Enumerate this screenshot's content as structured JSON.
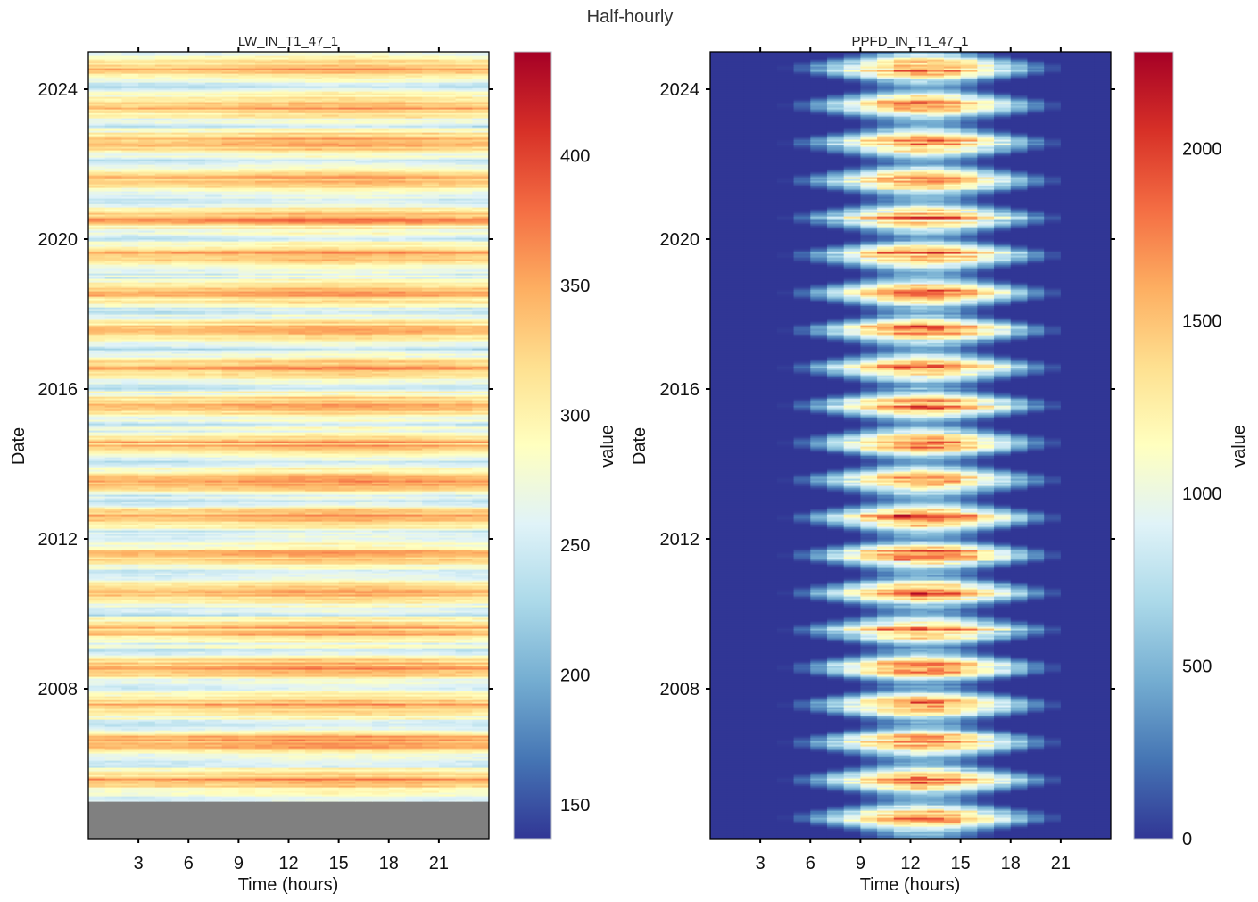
{
  "figure": {
    "title": "Half-hourly"
  },
  "chart_data": [
    {
      "type": "heatmap",
      "title": "LW_IN_T1_47_1",
      "xlabel": "Time (hours)",
      "ylabel": "Date",
      "x_ticks": [
        3,
        6,
        9,
        12,
        15,
        18,
        21
      ],
      "x_range": [
        0,
        24
      ],
      "y_ticks": [
        "2008",
        "2012",
        "2016",
        "2020",
        "2024"
      ],
      "y_range": [
        "2004-01-01",
        "2025-01-01"
      ],
      "data_start": "2005-01-01",
      "missing_before_data_start": true,
      "missing_color": "#808080",
      "colorbar": {
        "label": "value",
        "range": [
          137,
          440
        ],
        "ticks": [
          150,
          200,
          250,
          300,
          350,
          400
        ]
      },
      "colormap": "RdYlBu_r",
      "pattern": "annual cycle: higher values in summer, lower in winter; small diurnal variation"
    },
    {
      "type": "heatmap",
      "title": "PPFD_IN_T1_47_1",
      "xlabel": "Time (hours)",
      "ylabel": "Date",
      "x_ticks": [
        3,
        6,
        9,
        12,
        15,
        18,
        21
      ],
      "x_range": [
        0,
        24
      ],
      "y_ticks": [
        "2008",
        "2012",
        "2016",
        "2020",
        "2024"
      ],
      "y_range": [
        "2004-01-01",
        "2025-01-01"
      ],
      "colorbar": {
        "label": "value",
        "range": [
          0,
          2280
        ],
        "ticks": [
          0,
          500,
          1000,
          1500,
          2000
        ]
      },
      "colormap": "RdYlBu_r",
      "pattern": "zero at night; daytime peak near 12-13 h; day length and intensity largest in summer"
    }
  ]
}
